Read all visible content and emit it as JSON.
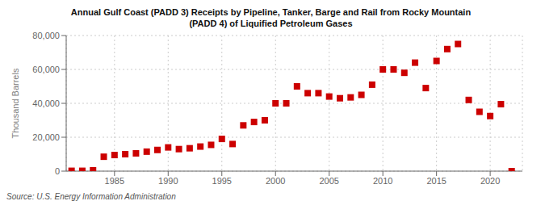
{
  "chart_data": {
    "type": "scatter",
    "title": "Annual Gulf Coast (PADD 3) Receipts by Pipeline, Tanker, Barge and Rail from Rocky Mountain\n(PADD 4) of Liquified Petroleum Gases",
    "y_label": "Thousand Barrels",
    "annotations": [
      "Source: U.S. Energy Information Administration"
    ],
    "x": [
      1981,
      1982,
      1983,
      1984,
      1985,
      1986,
      1987,
      1988,
      1989,
      1990,
      1991,
      1992,
      1993,
      1994,
      1995,
      1996,
      1997,
      1998,
      1999,
      2000,
      2001,
      2002,
      2003,
      2004,
      2005,
      2006,
      2007,
      2008,
      2009,
      2010,
      2011,
      2012,
      2013,
      2014,
      2015,
      2016,
      2017,
      2018,
      2019,
      2020,
      2021,
      2022
    ],
    "values": [
      200,
      200,
      500,
      8500,
      9500,
      10000,
      10500,
      11500,
      12500,
      14000,
      13000,
      13500,
      14500,
      15500,
      19000,
      16000,
      27000,
      29000,
      30000,
      40000,
      40000,
      50000,
      46000,
      46000,
      44000,
      43000,
      43500,
      45000,
      51000,
      60000,
      60000,
      58000,
      64000,
      49000,
      65000,
      72000,
      75000,
      42000,
      35000,
      32500,
      39500,
      0
    ],
    "color": "#cc0000",
    "marker": "square",
    "xlim": [
      1980.5,
      2023
    ],
    "xticks": [
      1985,
      1990,
      1995,
      2000,
      2005,
      2010,
      2015,
      2020
    ],
    "ylim": [
      0,
      80000
    ],
    "yticks": [
      0,
      {
        "value": 20000,
        "label": "20,000"
      },
      {
        "value": 40000,
        "label": "40,000"
      },
      {
        "value": 60000,
        "label": "60,000"
      },
      {
        "value": 80000,
        "label": "80,000"
      }
    ],
    "grid": true
  }
}
